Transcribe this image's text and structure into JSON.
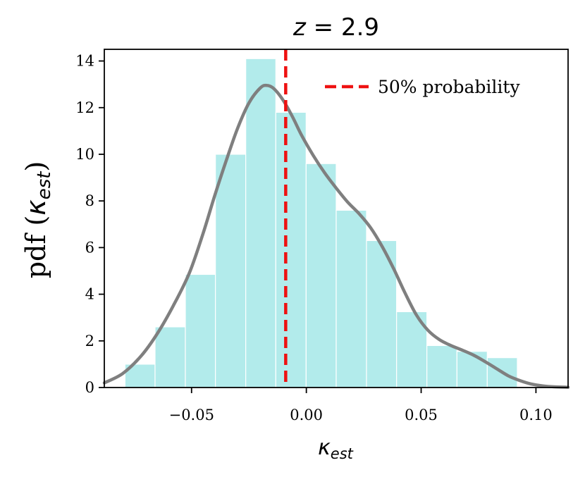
{
  "chart_data": {
    "type": "bar",
    "title": "z = 2.9",
    "title_parts": {
      "var": "z",
      "rest": " = 2.9"
    },
    "xlabel": {
      "base": "κ",
      "sub": "est"
    },
    "ylabel": {
      "text": "pdf (",
      "var": "κ",
      "sub": "est",
      "close": ")"
    },
    "xlim": [
      -0.088,
      0.114
    ],
    "ylim": [
      0,
      14.5
    ],
    "xticks": [
      -0.05,
      0.0,
      0.05,
      0.1
    ],
    "xtick_labels": [
      "−0.05",
      "0.00",
      "0.05",
      "0.10"
    ],
    "yticks": [
      0,
      2,
      4,
      6,
      8,
      10,
      12,
      14
    ],
    "ytick_labels": [
      "0",
      "2",
      "4",
      "6",
      "8",
      "10",
      "12",
      "14"
    ],
    "grid": false,
    "histogram": {
      "bin_edges": [
        -0.079,
        -0.0659,
        -0.0527,
        -0.0396,
        -0.0264,
        -0.0133,
        -0.0001,
        0.013,
        0.0262,
        0.0393,
        0.0525,
        0.0656,
        0.0788,
        0.0919
      ],
      "values": [
        1.0,
        2.6,
        4.85,
        10.0,
        14.1,
        11.8,
        9.6,
        7.6,
        6.3,
        3.25,
        1.8,
        1.55,
        1.28,
        0.08
      ],
      "color": "#b2ebeb"
    },
    "kde": {
      "x": [
        -0.088,
        -0.08,
        -0.072,
        -0.065,
        -0.058,
        -0.051,
        -0.045,
        -0.04,
        -0.035,
        -0.03,
        -0.025,
        -0.02,
        -0.017,
        -0.014,
        -0.01,
        -0.006,
        -0.002,
        0.003,
        0.008,
        0.013,
        0.018,
        0.023,
        0.028,
        0.033,
        0.038,
        0.043,
        0.048,
        0.053,
        0.058,
        0.063,
        0.068,
        0.073,
        0.078,
        0.083,
        0.088,
        0.093,
        0.098,
        0.103,
        0.108,
        0.114
      ],
      "y": [
        0.2,
        0.6,
        1.35,
        2.3,
        3.5,
        4.9,
        6.6,
        8.2,
        9.7,
        11.1,
        12.2,
        12.85,
        12.95,
        12.8,
        12.3,
        11.6,
        10.8,
        9.95,
        9.2,
        8.55,
        7.95,
        7.45,
        6.85,
        6.05,
        5.1,
        4.05,
        3.1,
        2.45,
        2.05,
        1.8,
        1.6,
        1.38,
        1.1,
        0.8,
        0.5,
        0.3,
        0.15,
        0.07,
        0.03,
        0.01
      ],
      "color": "#7f7f7f"
    },
    "vline": {
      "x": -0.009,
      "label": "50% probability",
      "color": "#ee1111"
    },
    "legend": {
      "placement": "top-right",
      "entries": [
        "50% probability"
      ]
    }
  }
}
